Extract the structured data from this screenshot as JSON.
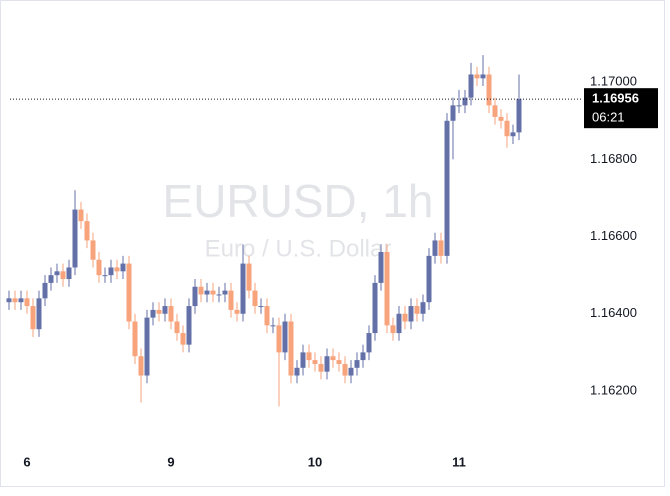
{
  "chart_data": {
    "type": "candlestick",
    "watermark_title": "EURUSD, 1h",
    "watermark_subtitle": "Euro / U.S. Dollar",
    "categories": [
      null,
      null,
      null,
      "6",
      null,
      null,
      null,
      null,
      null,
      null,
      null,
      null,
      null,
      null,
      null,
      null,
      null,
      null,
      null,
      null,
      null,
      null,
      null,
      null,
      null,
      null,
      null,
      "9",
      null,
      null,
      null,
      null,
      null,
      null,
      null,
      null,
      null,
      null,
      null,
      null,
      null,
      null,
      null,
      null,
      null,
      null,
      null,
      null,
      null,
      null,
      null,
      "10",
      null,
      null,
      null,
      null,
      null,
      null,
      null,
      null,
      null,
      null,
      null,
      null,
      null,
      null,
      null,
      null,
      null,
      null,
      null,
      null,
      null,
      null,
      null,
      "11",
      null,
      null,
      null,
      null,
      null,
      null,
      null,
      null,
      null,
      null
    ],
    "open": [
      1.1643,
      1.1644,
      1.1643,
      1.1644,
      1.1642,
      1.1636,
      1.1644,
      1.1648,
      1.165,
      1.1651,
      1.1649,
      1.1652,
      1.1667,
      1.1664,
      1.1659,
      1.1654,
      1.165,
      1.165,
      1.1652,
      1.1651,
      1.1653,
      1.1638,
      1.1629,
      1.1624,
      1.1639,
      1.1641,
      1.164,
      1.1642,
      1.1638,
      1.1635,
      1.1632,
      1.1642,
      1.1647,
      1.1645,
      1.1646,
      1.1645,
      1.1645,
      1.1646,
      1.1641,
      1.164,
      1.1653,
      1.1646,
      1.1642,
      1.1642,
      1.1637,
      1.1637,
      1.163,
      1.1638,
      1.1624,
      1.1626,
      1.163,
      1.1628,
      1.1627,
      1.1625,
      1.1629,
      1.1628,
      1.1627,
      1.1624,
      1.1626,
      1.1628,
      1.163,
      1.1635,
      1.1648,
      1.1656,
      1.1637,
      1.1635,
      1.164,
      1.1638,
      1.1642,
      1.164,
      1.1643,
      1.1655,
      1.1659,
      1.1655,
      1.169,
      1.1694,
      1.1694,
      1.1696,
      1.1702,
      1.1701,
      1.1702,
      1.1694,
      1.1691,
      1.169,
      1.1686,
      1.1687
    ],
    "high": [
      1.1646,
      1.1646,
      1.1646,
      1.1646,
      1.1644,
      1.1646,
      1.165,
      1.1652,
      1.1653,
      1.1653,
      1.1654,
      1.1672,
      1.1669,
      1.1666,
      1.1661,
      1.1656,
      1.1652,
      1.1654,
      1.1654,
      1.1655,
      1.1655,
      1.164,
      1.1631,
      1.1641,
      1.1643,
      1.1643,
      1.1644,
      1.1644,
      1.164,
      1.1637,
      1.1644,
      1.1649,
      1.1649,
      1.1648,
      1.1648,
      1.1647,
      1.1648,
      1.1648,
      1.1643,
      1.1658,
      1.1655,
      1.1648,
      1.1644,
      1.1644,
      1.1639,
      1.1639,
      1.164,
      1.164,
      1.1628,
      1.1632,
      1.1632,
      1.163,
      1.1629,
      1.1631,
      1.1631,
      1.163,
      1.1629,
      1.1628,
      1.163,
      1.1632,
      1.1637,
      1.165,
      1.1658,
      1.1658,
      1.1639,
      1.1642,
      1.1642,
      1.1644,
      1.1644,
      1.1645,
      1.1657,
      1.1661,
      1.1661,
      1.1692,
      1.1696,
      1.1698,
      1.1698,
      1.1705,
      1.1704,
      1.1707,
      1.1704,
      1.1696,
      1.1693,
      1.1692,
      1.1689,
      1.1702
    ],
    "low": [
      1.1641,
      1.1641,
      1.1641,
      1.164,
      1.1634,
      1.1634,
      1.1642,
      1.1646,
      1.1648,
      1.1647,
      1.1647,
      1.165,
      1.1662,
      1.1657,
      1.1652,
      1.1648,
      1.1648,
      1.1648,
      1.1649,
      1.1649,
      1.1636,
      1.1627,
      1.1617,
      1.1622,
      1.1637,
      1.1638,
      1.1638,
      1.1636,
      1.1633,
      1.163,
      1.163,
      1.164,
      1.1643,
      1.1643,
      1.1643,
      1.1643,
      1.1643,
      1.1639,
      1.1638,
      1.1638,
      1.1644,
      1.164,
      1.164,
      1.1635,
      1.1635,
      1.1616,
      1.1628,
      1.1622,
      1.1622,
      1.1624,
      1.1626,
      1.1625,
      1.1623,
      1.1623,
      1.1626,
      1.1625,
      1.1622,
      1.1622,
      1.1624,
      1.1626,
      1.1628,
      1.1633,
      1.1646,
      1.1635,
      1.1633,
      1.1633,
      1.1636,
      1.1636,
      1.1638,
      1.1638,
      1.1641,
      1.1653,
      1.1653,
      1.1653,
      1.168,
      1.1692,
      1.1692,
      1.1694,
      1.1699,
      1.1699,
      1.1692,
      1.1689,
      1.1688,
      1.1683,
      1.1684,
      1.1685
    ],
    "close": [
      1.1644,
      1.1643,
      1.1644,
      1.1642,
      1.1636,
      1.1644,
      1.1648,
      1.165,
      1.1651,
      1.1649,
      1.1652,
      1.1667,
      1.1664,
      1.1659,
      1.1654,
      1.165,
      1.165,
      1.1652,
      1.1651,
      1.1653,
      1.1638,
      1.1629,
      1.1624,
      1.1639,
      1.1641,
      1.164,
      1.1642,
      1.1638,
      1.1635,
      1.1632,
      1.1642,
      1.1647,
      1.1645,
      1.1646,
      1.1645,
      1.1645,
      1.1646,
      1.1641,
      1.164,
      1.1653,
      1.1646,
      1.1642,
      1.1642,
      1.1637,
      1.1637,
      1.163,
      1.1638,
      1.1624,
      1.1626,
      1.163,
      1.1628,
      1.1627,
      1.1625,
      1.1629,
      1.1628,
      1.1627,
      1.1624,
      1.1626,
      1.1628,
      1.163,
      1.1635,
      1.1648,
      1.1656,
      1.1637,
      1.1635,
      1.164,
      1.1638,
      1.1642,
      1.164,
      1.1643,
      1.1655,
      1.1659,
      1.1655,
      1.169,
      1.1694,
      1.1694,
      1.1696,
      1.1702,
      1.1701,
      1.1702,
      1.1694,
      1.1691,
      1.169,
      1.1686,
      1.1687,
      1.16956
    ],
    "last_price_label": "1.16956",
    "countdown": "06:21",
    "up_color": "#6471a8",
    "down_color": "#f7a37c",
    "ylim": [
      1.1606,
      1.172
    ],
    "yticks": [
      {
        "value": 1.162,
        "label": "1.16200"
      },
      {
        "value": 1.164,
        "label": "1.16400"
      },
      {
        "value": 1.166,
        "label": "1.16600"
      },
      {
        "value": 1.168,
        "label": "1.16800"
      },
      {
        "value": 1.17,
        "label": "1.17000"
      }
    ]
  }
}
